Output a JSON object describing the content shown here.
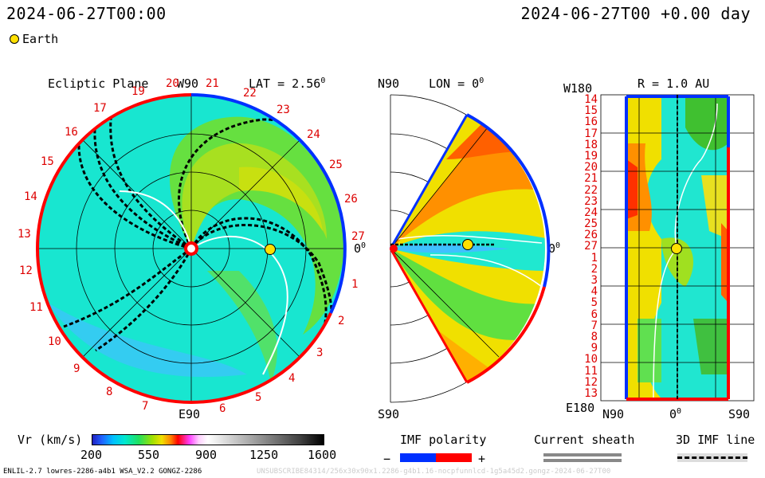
{
  "header": {
    "left_time": "2024-06-27T00:00",
    "right_time": "2024-06-27T00 +0.00 day",
    "legend_label": "Earth"
  },
  "ecliptic": {
    "title": "Ecliptic Plane",
    "lat": "LAT = 2.56",
    "lat_sup": "0",
    "w90": "W90",
    "e90": "E90",
    "zero": "0",
    "zero_sup": "0",
    "day_labels": [
      "19",
      "20",
      "21",
      "22",
      "23",
      "24",
      "25",
      "26",
      "27",
      "1",
      "2",
      "3",
      "4",
      "5",
      "6",
      "7",
      "8",
      "9",
      "10",
      "11",
      "12",
      "13",
      "14",
      "15",
      "16",
      "17",
      "18"
    ]
  },
  "meridional": {
    "n90": "N90",
    "s90": "S90",
    "lon": "LON = 0",
    "lon_sup": "0",
    "zero": "0",
    "zero_sup": "0"
  },
  "radial": {
    "w180": "W180",
    "e180": "E180",
    "r_label": "R = 1.0 AU",
    "n90": "N90",
    "s90": "S90",
    "zero": "0",
    "zero_sup": "0",
    "row_labels": [
      "14",
      "15",
      "16",
      "17",
      "18",
      "19",
      "20",
      "21",
      "22",
      "23",
      "24",
      "25",
      "26",
      "27",
      "1",
      "2",
      "3",
      "4",
      "5",
      "6",
      "7",
      "8",
      "9",
      "10",
      "11",
      "12",
      "13"
    ]
  },
  "colorbar": {
    "label": "Vr (km/s)",
    "ticks": [
      "200",
      "550",
      "900",
      "1250",
      "1600"
    ]
  },
  "imf": {
    "title": "IMF polarity",
    "minus": "−",
    "plus": "+"
  },
  "sheath": {
    "title": "Current sheath"
  },
  "line3d": {
    "title": "3D IMF line"
  },
  "footer": {
    "left": "ENLIL-2.7 lowres-2286-a4b1 WSA_V2.2 GONGZ-2286",
    "right": "UNSUBSCRIBE84314/256x30x90x1.2286-g4b1.16-nocpfunnlcd-1g5a45d2.gongz-2024-06-27T00"
  },
  "colors": {
    "positive": "#ff0000",
    "negative": "#0030ff",
    "earth": "#ffe000"
  }
}
